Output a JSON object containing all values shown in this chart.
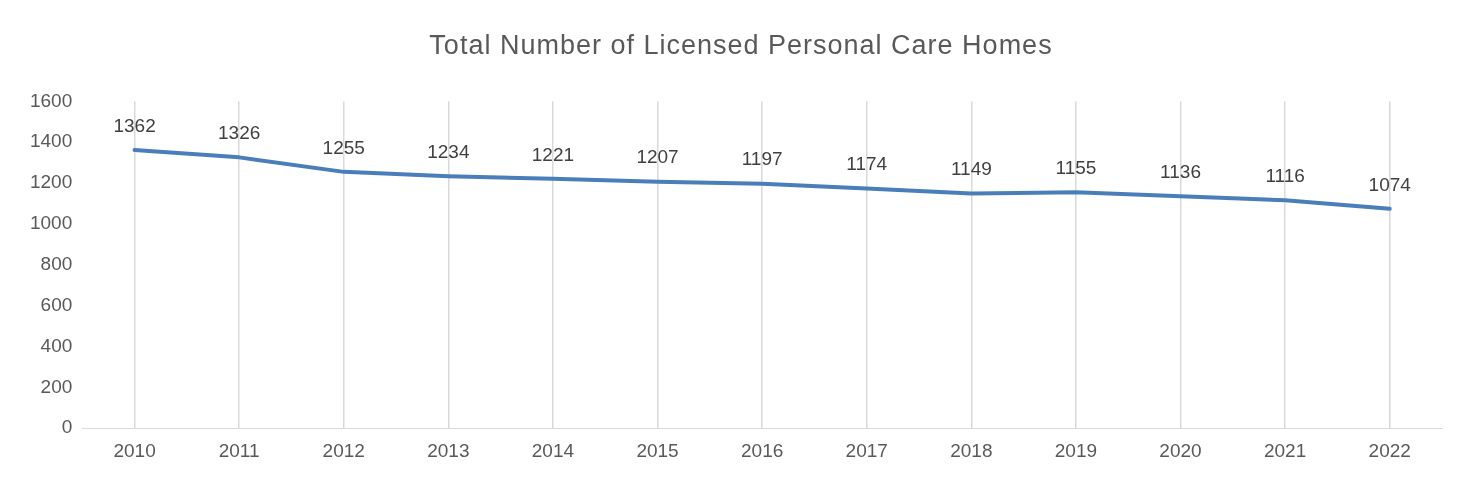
{
  "chart_data": {
    "type": "line",
    "title": "Total Number of Licensed Personal Care Homes",
    "categories": [
      "2010",
      "2011",
      "2012",
      "2013",
      "2014",
      "2015",
      "2016",
      "2017",
      "2018",
      "2019",
      "2020",
      "2021",
      "2022"
    ],
    "series": [
      {
        "color": "#4a7ebb",
        "values": [
          1362,
          1326,
          1255,
          1234,
          1221,
          1207,
          1197,
          1174,
          1149,
          1155,
          1136,
          1116,
          1074
        ]
      }
    ],
    "ylim": [
      0,
      1600
    ],
    "yticks": [
      0,
      200,
      400,
      600,
      800,
      1000,
      1200,
      1400,
      1600
    ],
    "grid": "x",
    "legend": false,
    "marker": "none",
    "line_style": "solid",
    "data_labels": true
  }
}
